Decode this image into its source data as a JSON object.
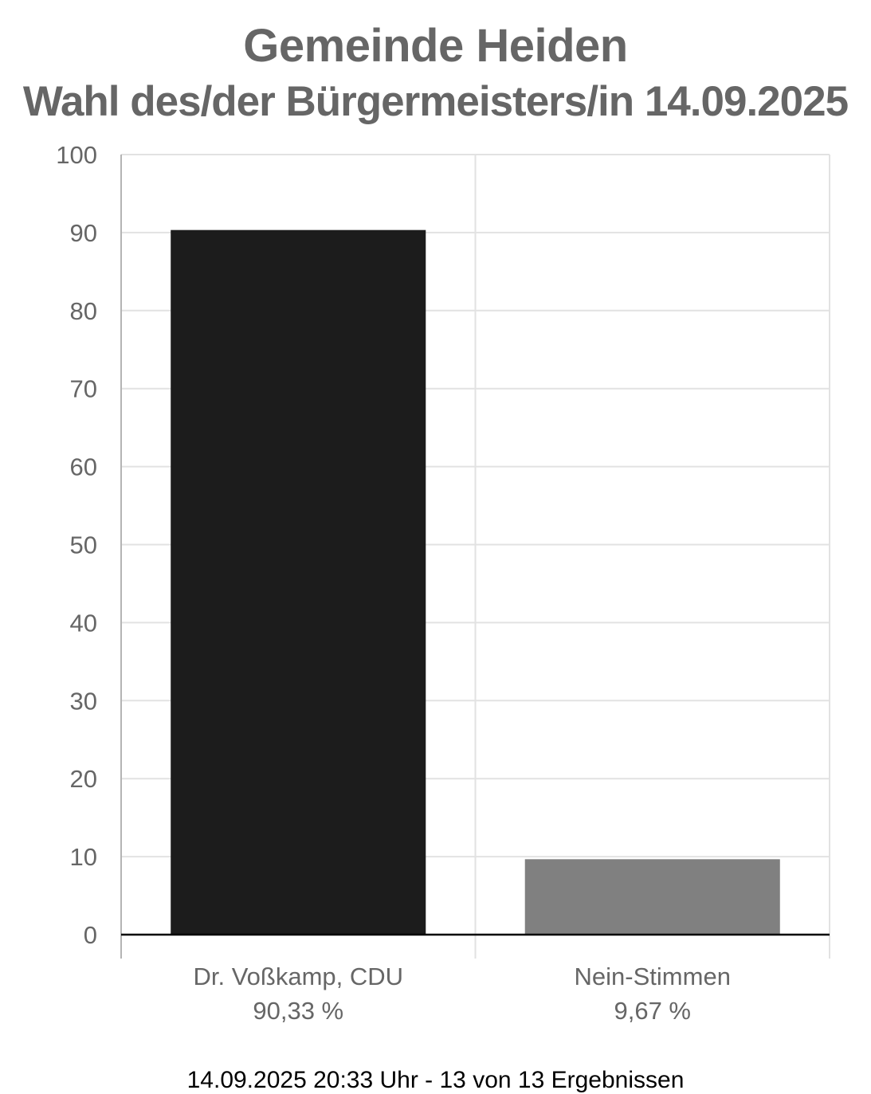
{
  "header": {
    "title": "Gemeinde Heiden",
    "subtitle": "Wahl des/der Bürgermeisters/in 14.09.2025"
  },
  "footer": {
    "text": "14.09.2025 20:33 Uhr - 13 von 13 Ergebnissen"
  },
  "chart_data": {
    "type": "bar",
    "title": "Gemeinde Heiden",
    "subtitle": "Wahl des/der Bürgermeisters/in 14.09.2025",
    "categories": [
      "Dr. Voßkamp, CDU",
      "Nein-Stimmen"
    ],
    "value_labels": [
      "90,33 %",
      "9,67 %"
    ],
    "values": [
      90.33,
      9.67
    ],
    "colors": [
      "#1c1c1c",
      "#808080"
    ],
    "ylim": [
      0,
      100
    ],
    "yticks": [
      0,
      10,
      20,
      30,
      40,
      50,
      60,
      70,
      80,
      90,
      100
    ],
    "grid": true,
    "legend": "none"
  }
}
